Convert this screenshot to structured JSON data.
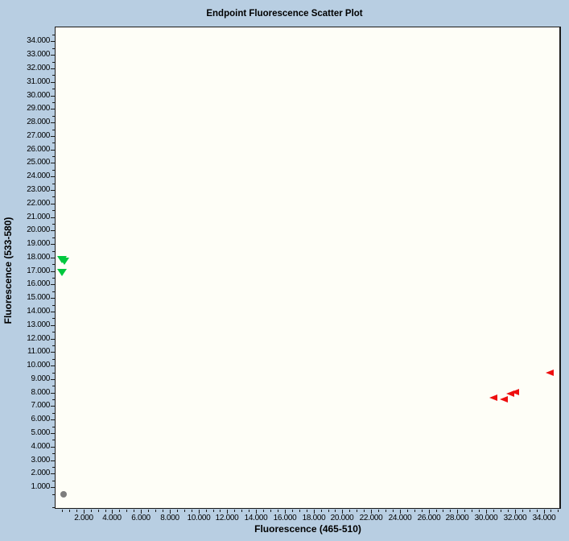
{
  "chart_data": {
    "type": "scatter",
    "title": "Endpoint Fluorescence Scatter Plot",
    "xlabel": "Fluorescence (465-510)",
    "ylabel": "Fluorescence (533-580)",
    "xlim": [
      0,
      35.2
    ],
    "ylim": [
      -0.6,
      35.1
    ],
    "x_ticks": [
      2,
      4,
      6,
      8,
      10,
      12,
      14,
      16,
      18,
      20,
      22,
      24,
      26,
      28,
      30,
      32,
      34
    ],
    "y_ticks": [
      1,
      2,
      3,
      4,
      5,
      6,
      7,
      8,
      9,
      10,
      11,
      12,
      13,
      14,
      15,
      16,
      17,
      18,
      19,
      20,
      21,
      22,
      23,
      24,
      25,
      26,
      27,
      28,
      29,
      30,
      31,
      32,
      33,
      34
    ],
    "minor_tick_step": 0.5,
    "tick_label_decimals": 3,
    "grid": false,
    "legend": false,
    "series": [
      {
        "name": "green-triangles",
        "marker": "triangle-down",
        "color": "#00c83e",
        "points": [
          [
            0.5,
            17.9
          ],
          [
            0.65,
            17.75
          ],
          [
            0.5,
            16.9
          ]
        ]
      },
      {
        "name": "red-triangles",
        "marker": "triangle-left",
        "color": "#ee0f0f",
        "points": [
          [
            30.5,
            7.6
          ],
          [
            31.2,
            7.5
          ],
          [
            31.7,
            7.9
          ],
          [
            32.0,
            8.05
          ],
          [
            34.4,
            9.5
          ]
        ]
      },
      {
        "name": "gray-dot",
        "marker": "circle",
        "color": "#7d7d7d",
        "points": [
          [
            0.6,
            0.45
          ]
        ]
      }
    ]
  },
  "colors": {
    "background": "#b8cee2",
    "plot_background": "#fefef7",
    "axis": "#1a1a1a",
    "text": "#000000"
  }
}
